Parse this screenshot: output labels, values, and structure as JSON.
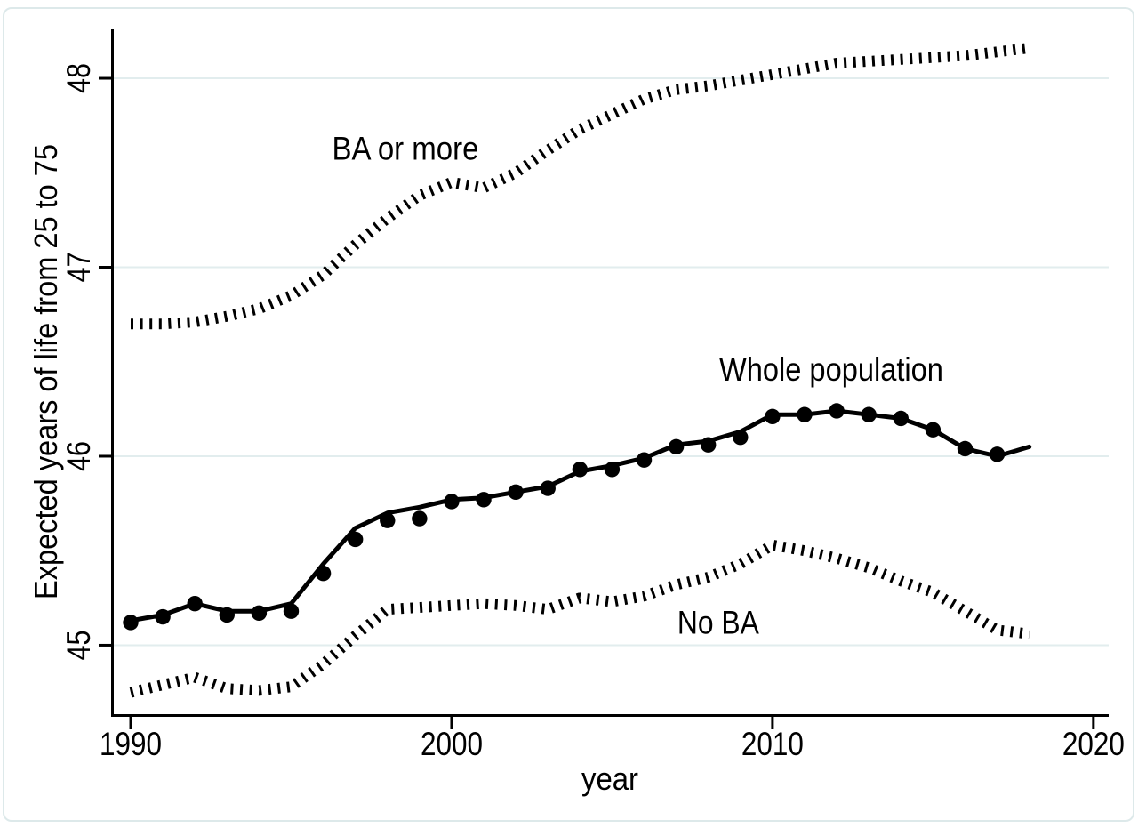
{
  "figure": {
    "background": "#ffffff",
    "border_color": "#dde9ea"
  },
  "chart_data": {
    "type": "line",
    "title": "",
    "xlabel": "year",
    "ylabel": "Expected years of life from 25 to 75",
    "x_ticks": [
      1990,
      2000,
      2010,
      2020
    ],
    "y_ticks": [
      45,
      46,
      47,
      48
    ],
    "xlim": [
      1989.39,
      2020.42
    ],
    "ylim": [
      44.635,
      48.259
    ],
    "grid": "horizontal",
    "grid_color": "#e2edee",
    "line_color": "#000000",
    "x": [
      1990,
      1991,
      1992,
      1993,
      1994,
      1995,
      1996,
      1997,
      1998,
      1999,
      2000,
      2001,
      2002,
      2003,
      2004,
      2005,
      2006,
      2007,
      2008,
      2009,
      2010,
      2011,
      2012,
      2013,
      2014,
      2015,
      2016,
      2017,
      2018
    ],
    "series": [
      {
        "name": "BA or more",
        "style": "tick-dash",
        "values": [
          46.7,
          46.7,
          46.71,
          46.74,
          46.78,
          46.85,
          46.96,
          47.12,
          47.26,
          47.38,
          47.45,
          47.42,
          47.5,
          47.62,
          47.73,
          47.81,
          47.89,
          47.94,
          47.96,
          47.99,
          48.02,
          48.05,
          48.08,
          48.09,
          48.1,
          48.11,
          48.12,
          48.14,
          48.16
        ]
      },
      {
        "name": "Whole population (smoothed line)",
        "style": "solid",
        "values": [
          45.13,
          45.16,
          45.22,
          45.18,
          45.18,
          45.22,
          45.43,
          45.62,
          45.7,
          45.73,
          45.77,
          45.78,
          45.81,
          45.84,
          45.92,
          45.95,
          45.99,
          46.06,
          46.08,
          46.13,
          46.22,
          46.22,
          46.24,
          46.22,
          46.2,
          46.14,
          46.04,
          46.0,
          46.05
        ]
      },
      {
        "name": "Whole population (annual estimates)",
        "style": "scatter",
        "x": [
          1990,
          1991,
          1992,
          1993,
          1994,
          1995,
          1996,
          1997,
          1998,
          1999,
          2000,
          2001,
          2002,
          2003,
          2004,
          2005,
          2006,
          2007,
          2008,
          2009,
          2010,
          2011,
          2012,
          2013,
          2014,
          2015,
          2016,
          2017
        ],
        "values": [
          45.12,
          45.15,
          45.22,
          45.16,
          45.17,
          45.18,
          45.38,
          45.56,
          45.66,
          45.67,
          45.76,
          45.77,
          45.81,
          45.83,
          45.93,
          45.93,
          45.98,
          46.05,
          46.06,
          46.1,
          46.21,
          46.22,
          46.24,
          46.22,
          46.2,
          46.14,
          46.04,
          46.01
        ]
      },
      {
        "name": "No BA",
        "style": "tick-dash",
        "values": [
          44.75,
          44.79,
          44.83,
          44.77,
          44.76,
          44.78,
          44.9,
          45.05,
          45.19,
          45.2,
          45.21,
          45.22,
          45.21,
          45.19,
          45.25,
          45.23,
          45.26,
          45.32,
          45.36,
          45.43,
          45.53,
          45.5,
          45.46,
          45.41,
          45.34,
          45.28,
          45.18,
          45.08,
          45.06
        ]
      }
    ],
    "annotations": [
      {
        "text": "BA or more",
        "x": 1998.56,
        "y": 47.57
      },
      {
        "text": "Whole population",
        "x": 2011.83,
        "y": 46.4
      },
      {
        "text": "No BA",
        "x": 2008.31,
        "y": 45.06
      }
    ],
    "legend": "none (direct labels on chart)"
  }
}
